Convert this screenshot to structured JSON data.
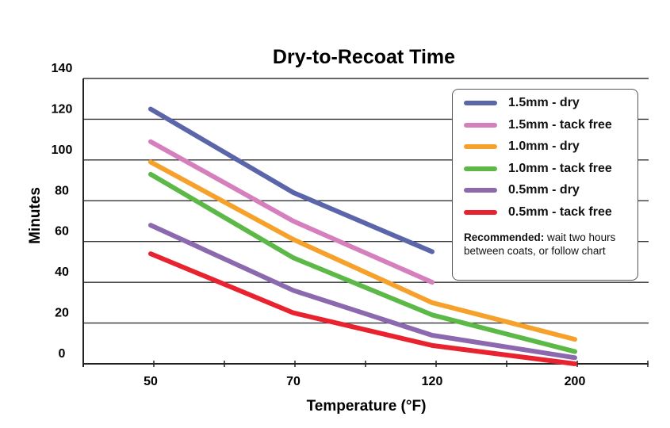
{
  "chart_data": {
    "type": "line",
    "title": "Dry-to-Recoat Time",
    "xlabel": "Temperature (°F)",
    "ylabel": "Minutes",
    "categories": [
      "50",
      "70",
      "120",
      "200"
    ],
    "yticks": [
      "0",
      "20",
      "40",
      "60",
      "80",
      "100",
      "120",
      "140"
    ],
    "ylim": [
      0,
      140
    ],
    "grid": true,
    "legend_position": "top-right",
    "series": [
      {
        "name": "1.5mm - dry",
        "color": "#5b65a9",
        "values": [
          125,
          84,
          55,
          null
        ]
      },
      {
        "name": "1.5mm - tack free",
        "color": "#d57fbd",
        "values": [
          109,
          70,
          40,
          null
        ]
      },
      {
        "name": "1.0mm - dry",
        "color": "#f6a12b",
        "values": [
          99,
          61,
          30,
          12
        ]
      },
      {
        "name": "1.0mm - tack free",
        "color": "#5cb947",
        "values": [
          93,
          52,
          24,
          6
        ]
      },
      {
        "name": "0.5mm - dry",
        "color": "#8c69ae",
        "values": [
          68,
          36,
          14,
          3
        ]
      },
      {
        "name": "0.5mm - tack free",
        "color": "#e8232f",
        "values": [
          54,
          25,
          9,
          0
        ]
      }
    ],
    "note": {
      "bold": "Recommended:",
      "text": " wait two hours between coats, or follow chart"
    }
  }
}
